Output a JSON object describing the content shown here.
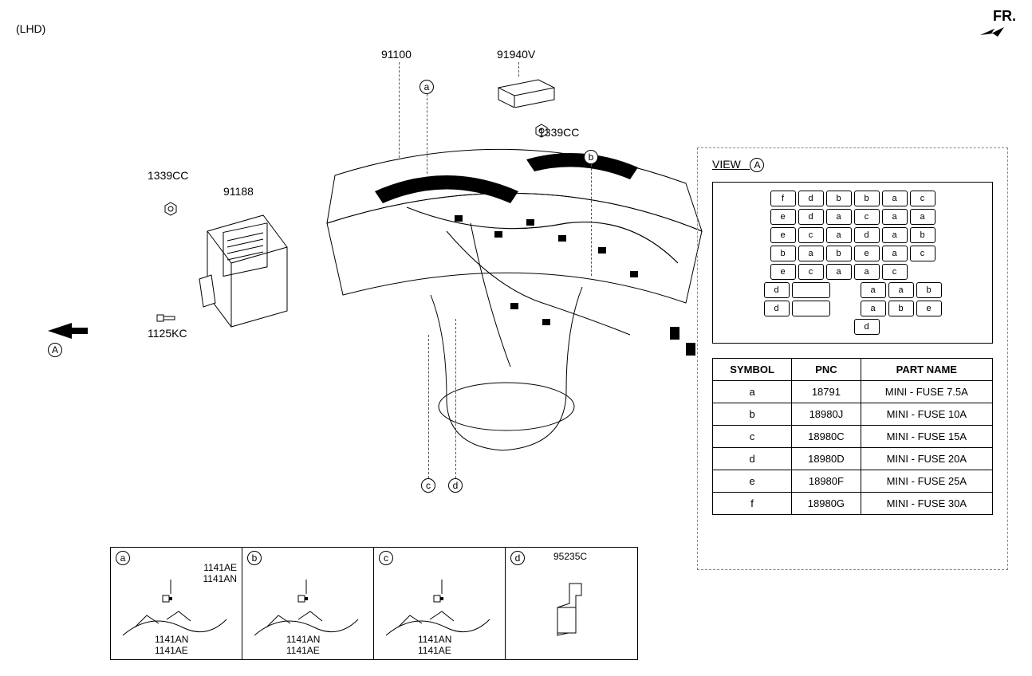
{
  "meta": {
    "lhd": "(LHD)",
    "fr": "FR."
  },
  "callouts": {
    "c91100": "91100",
    "c91940V": "91940V",
    "c1339CC_right": "1339CC",
    "c1339CC_left": "1339CC",
    "c91188": "91188",
    "c1125KC": "1125KC",
    "letter_a": "a",
    "letter_b": "b",
    "letter_c": "c",
    "letter_d": "d",
    "view_A": "A"
  },
  "view_a": {
    "title": "VIEW",
    "letter": "A",
    "fuse_grid_rows": [
      [
        "f",
        "d",
        "b",
        "b",
        "a",
        "c"
      ],
      [
        "e",
        "d",
        "a",
        "c",
        "a",
        "a"
      ],
      [
        "e",
        "c",
        "a",
        "d",
        "a",
        "b"
      ],
      [
        "b",
        "a",
        "b",
        "e",
        "a",
        "c"
      ],
      [
        "e",
        "c",
        "a",
        "a",
        "c",
        ""
      ],
      [
        "d",
        "",
        "",
        "a",
        "a",
        "b"
      ],
      [
        "d",
        "",
        "",
        "a",
        "b",
        "e"
      ],
      [
        "",
        "",
        "",
        "d",
        "",
        ""
      ]
    ],
    "parts_table": {
      "headers": [
        "SYMBOL",
        "PNC",
        "PART NAME"
      ],
      "rows": [
        [
          "a",
          "18791",
          "MINI - FUSE 7.5A"
        ],
        [
          "b",
          "18980J",
          "MINI - FUSE 10A"
        ],
        [
          "c",
          "18980C",
          "MINI - FUSE 15A"
        ],
        [
          "d",
          "18980D",
          "MINI - FUSE 20A"
        ],
        [
          "e",
          "18980F",
          "MINI - FUSE 25A"
        ],
        [
          "f",
          "18980G",
          "MINI - FUSE 30A"
        ]
      ]
    }
  },
  "detail_panels": [
    {
      "letter": "a",
      "callouts": [
        "1141AE",
        "1141AN"
      ]
    },
    {
      "letter": "b",
      "callouts": [
        "1141AE",
        "1141AN"
      ]
    },
    {
      "letter": "c",
      "callouts": [
        "1141AE",
        "1141AN"
      ]
    },
    {
      "letter": "d",
      "top_callout": "95235C",
      "callouts": []
    }
  ],
  "colors": {
    "line": "#000000",
    "dashed_box": "#888888",
    "bg": "#ffffff"
  }
}
